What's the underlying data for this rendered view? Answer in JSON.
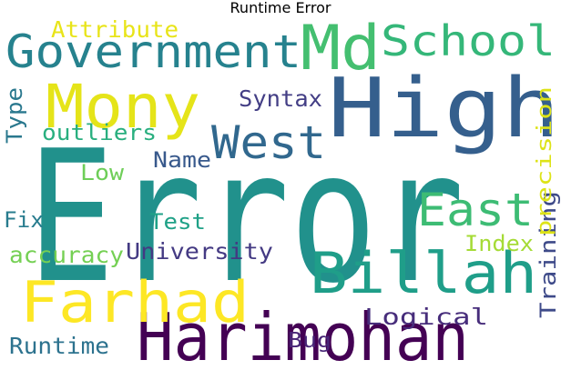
{
  "title": "Runtime Error",
  "words": [
    {
      "text": "Error",
      "color": "#21918c",
      "orientation": "horizontal"
    },
    {
      "text": "High",
      "color": "#355f8d",
      "orientation": "horizontal"
    },
    {
      "text": "Harimohan",
      "color": "#440154",
      "orientation": "horizontal"
    },
    {
      "text": "Billah",
      "color": "#1f9e89",
      "orientation": "horizontal"
    },
    {
      "text": "Farhad",
      "color": "#fde725",
      "orientation": "horizontal"
    },
    {
      "text": "Mony",
      "color": "#e5e419",
      "orientation": "horizontal"
    },
    {
      "text": "Government",
      "color": "#26828e",
      "orientation": "horizontal"
    },
    {
      "text": "Md",
      "color": "#44bf70",
      "orientation": "horizontal"
    },
    {
      "text": "School",
      "color": "#35b779",
      "orientation": "horizontal"
    },
    {
      "text": "West",
      "color": "#31688e",
      "orientation": "horizontal"
    },
    {
      "text": "East",
      "color": "#3dbc74",
      "orientation": "horizontal"
    },
    {
      "text": "University",
      "color": "#443a83",
      "orientation": "horizontal"
    },
    {
      "text": "Training",
      "color": "#3e4a89",
      "orientation": "vertical"
    },
    {
      "text": "precision",
      "color": "#dde318",
      "orientation": "vertical"
    },
    {
      "text": "Attribute",
      "color": "#e8e419",
      "orientation": "horizontal"
    },
    {
      "text": "Syntax",
      "color": "#433e85",
      "orientation": "horizontal"
    },
    {
      "text": "outliers",
      "color": "#29af7f",
      "orientation": "horizontal"
    },
    {
      "text": "Type",
      "color": "#2a788e",
      "orientation": "vertical"
    },
    {
      "text": "Name",
      "color": "#38598c",
      "orientation": "horizontal"
    },
    {
      "text": "Low",
      "color": "#6ece58",
      "orientation": "horizontal"
    },
    {
      "text": "Fix",
      "color": "#287c8e",
      "orientation": "horizontal"
    },
    {
      "text": "Test",
      "color": "#1fa187",
      "orientation": "horizontal"
    },
    {
      "text": "accuracy",
      "color": "#75d054",
      "orientation": "horizontal"
    },
    {
      "text": "Index",
      "color": "#a5db36",
      "orientation": "horizontal"
    },
    {
      "text": "Bug",
      "color": "#482677",
      "orientation": "horizontal"
    },
    {
      "text": "Logical",
      "color": "#472d7b",
      "orientation": "horizontal"
    },
    {
      "text": "Runtime",
      "color": "#2c728e",
      "orientation": "horizontal"
    }
  ]
}
